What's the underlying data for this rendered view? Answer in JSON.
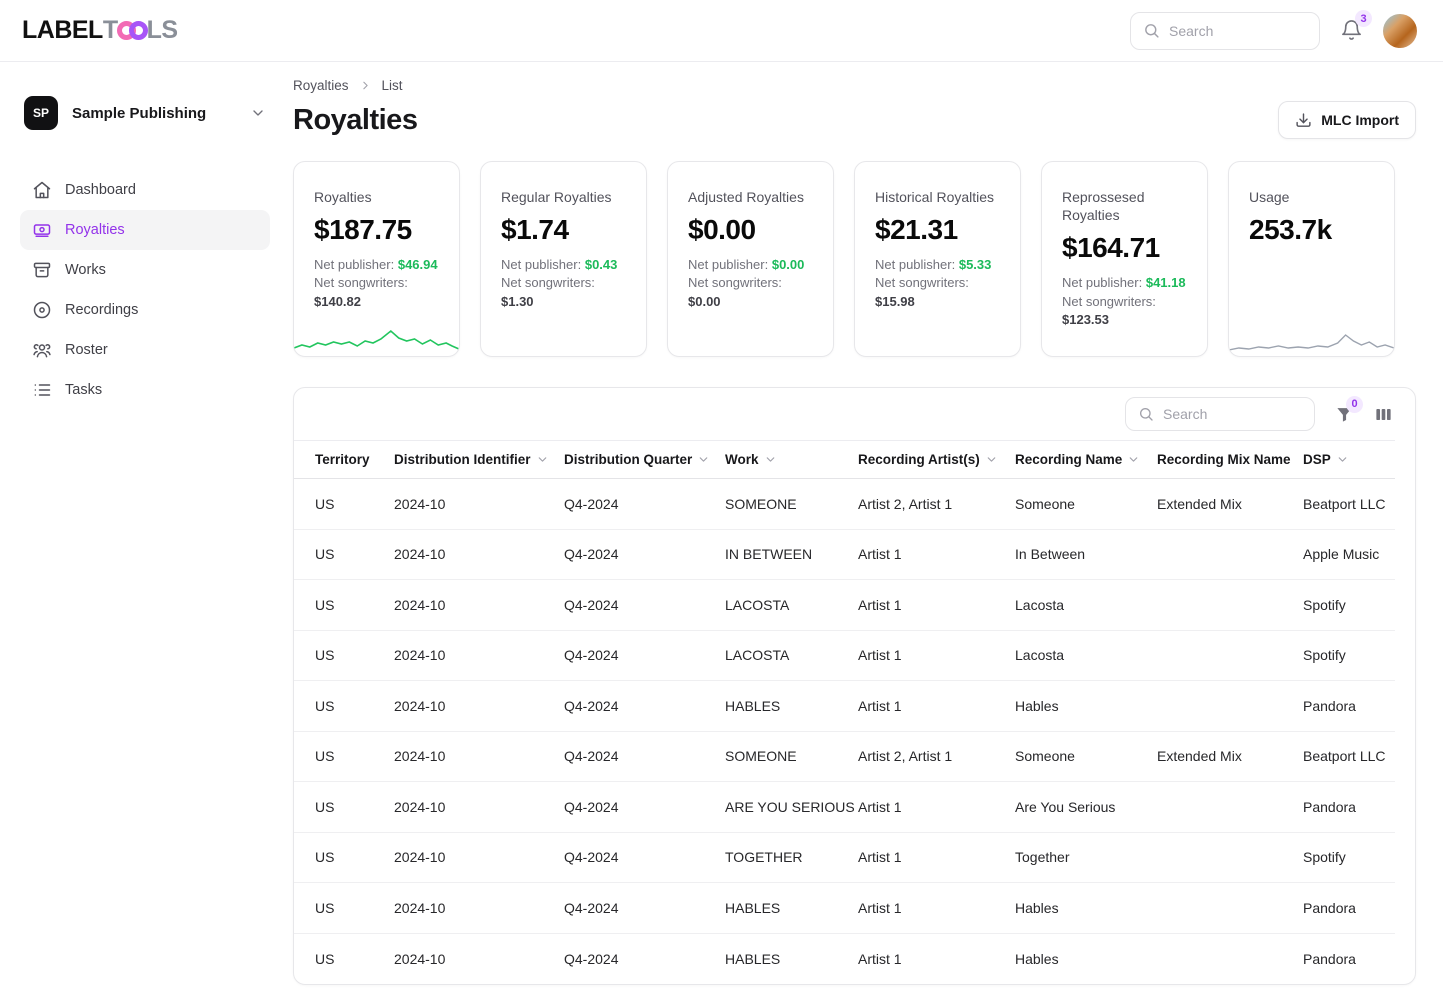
{
  "brand": {
    "name": "LABELTOOLS",
    "label_part": "LABEL",
    "tools_t": "T",
    "tools_ls": "LS"
  },
  "topbar": {
    "search_placeholder": "Search",
    "notification_count": "3"
  },
  "sidebar": {
    "org": {
      "initials": "SP",
      "name": "Sample Publishing"
    },
    "items": [
      {
        "label": "Dashboard"
      },
      {
        "label": "Royalties"
      },
      {
        "label": "Works"
      },
      {
        "label": "Recordings"
      },
      {
        "label": "Roster"
      },
      {
        "label": "Tasks"
      }
    ]
  },
  "page": {
    "breadcrumb": {
      "root": "Royalties",
      "current": "List"
    },
    "title": "Royalties",
    "import_button": "MLC Import"
  },
  "stats": [
    {
      "label": "Royalties",
      "value": "$187.75",
      "net_publisher_label": "Net publisher:",
      "net_publisher": "$46.94",
      "net_songwriters_label": "Net songwriters:",
      "net_songwriters": "$140.82"
    },
    {
      "label": "Regular Royalties",
      "value": "$1.74",
      "net_publisher_label": "Net publisher:",
      "net_publisher": "$0.43",
      "net_songwriters_label": "Net songwriters:",
      "net_songwriters": "$1.30"
    },
    {
      "label": "Adjusted Royalties",
      "value": "$0.00",
      "net_publisher_label": "Net publisher:",
      "net_publisher": "$0.00",
      "net_songwriters_label": "Net songwriters:",
      "net_songwriters": "$0.00"
    },
    {
      "label": "Historical Royalties",
      "value": "$21.31",
      "net_publisher_label": "Net publisher:",
      "net_publisher": "$5.33",
      "net_songwriters_label": "Net songwriters:",
      "net_songwriters": "$15.98"
    },
    {
      "label": "Reprossesed Royalties",
      "value": "$164.71",
      "net_publisher_label": "Net publisher:",
      "net_publisher": "$41.18",
      "net_songwriters_label": "Net songwriters:",
      "net_songwriters": "$123.53"
    },
    {
      "label": "Usage",
      "value": "253.7k"
    }
  ],
  "table": {
    "search_placeholder": "Search",
    "filter_badge": "0",
    "columns": [
      {
        "label": "Territory",
        "sortable": false
      },
      {
        "label": "Distribution Identifier",
        "sortable": true
      },
      {
        "label": "Distribution Quarter",
        "sortable": true
      },
      {
        "label": "Work",
        "sortable": true
      },
      {
        "label": "Recording Artist(s)",
        "sortable": true
      },
      {
        "label": "Recording Name",
        "sortable": true
      },
      {
        "label": "Recording Mix Name",
        "sortable": false
      },
      {
        "label": "DSP",
        "sortable": true
      }
    ],
    "rows": [
      [
        "US",
        "2024-10",
        "Q4-2024",
        "SOMEONE",
        "Artist 2, Artist 1",
        "Someone",
        "Extended Mix",
        "Beatport LLC"
      ],
      [
        "US",
        "2024-10",
        "Q4-2024",
        "IN BETWEEN",
        "Artist 1",
        "In Between",
        "",
        "Apple Music"
      ],
      [
        "US",
        "2024-10",
        "Q4-2024",
        "LACOSTA",
        "Artist 1",
        "Lacosta",
        "",
        "Spotify"
      ],
      [
        "US",
        "2024-10",
        "Q4-2024",
        "LACOSTA",
        "Artist 1",
        "Lacosta",
        "",
        "Spotify"
      ],
      [
        "US",
        "2024-10",
        "Q4-2024",
        "HABLES",
        "Artist 1",
        "Hables",
        "",
        "Pandora"
      ],
      [
        "US",
        "2024-10",
        "Q4-2024",
        "SOMEONE",
        "Artist 2, Artist 1",
        "Someone",
        "Extended Mix",
        "Beatport LLC"
      ],
      [
        "US",
        "2024-10",
        "Q4-2024",
        "ARE YOU SERIOUS",
        "Artist 1",
        "Are You Serious",
        "",
        "Pandora"
      ],
      [
        "US",
        "2024-10",
        "Q4-2024",
        "TOGETHER",
        "Artist 1",
        "Together",
        "",
        "Spotify"
      ],
      [
        "US",
        "2024-10",
        "Q4-2024",
        "HABLES",
        "Artist 1",
        "Hables",
        "",
        "Pandora"
      ],
      [
        "US",
        "2024-10",
        "Q4-2024",
        "HABLES",
        "Artist 1",
        "Hables",
        "",
        "Pandora"
      ]
    ]
  },
  "colors": {
    "accent": "#9333ea",
    "green": "#1cba5a",
    "badge_bg": "#f3e8ff"
  }
}
